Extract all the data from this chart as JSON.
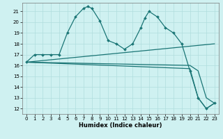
{
  "xlabel": "Humidex (Indice chaleur)",
  "background_color": "#cff1f1",
  "grid_color": "#b0dede",
  "line_color": "#1a7575",
  "xlim": [
    -0.5,
    23.5
  ],
  "ylim": [
    11.5,
    21.8
  ],
  "yticks": [
    12,
    13,
    14,
    15,
    16,
    17,
    18,
    19,
    20,
    21
  ],
  "xticks": [
    0,
    1,
    2,
    3,
    4,
    5,
    6,
    7,
    8,
    9,
    10,
    11,
    12,
    13,
    14,
    15,
    16,
    17,
    18,
    19,
    20,
    21,
    22,
    23
  ],
  "lines": [
    {
      "x": [
        0,
        1,
        2,
        3,
        4,
        5,
        6,
        7,
        7.5,
        8,
        9,
        10,
        11,
        12,
        13,
        14,
        14.5,
        15,
        16,
        17,
        18,
        19,
        20,
        21,
        22,
        23
      ],
      "y": [
        16.3,
        17.0,
        17.0,
        17.0,
        17.0,
        19.0,
        20.5,
        21.3,
        21.45,
        21.3,
        20.1,
        18.3,
        18.0,
        17.5,
        18.0,
        19.5,
        20.4,
        21.0,
        20.5,
        19.5,
        19.0,
        18.0,
        15.5,
        13.0,
        12.0,
        12.5
      ],
      "marker": true,
      "linewidth": 0.9
    },
    {
      "x": [
        0,
        23
      ],
      "y": [
        16.3,
        18.0
      ],
      "marker": false,
      "linewidth": 0.9
    },
    {
      "x": [
        0,
        20,
        21,
        22,
        23
      ],
      "y": [
        16.3,
        16.0,
        15.5,
        13.0,
        12.5
      ],
      "marker": false,
      "linewidth": 0.9
    },
    {
      "x": [
        0,
        20,
        21,
        22,
        23
      ],
      "y": [
        16.3,
        15.7,
        13.0,
        12.0,
        12.5
      ],
      "marker": false,
      "linewidth": 0.9
    }
  ]
}
